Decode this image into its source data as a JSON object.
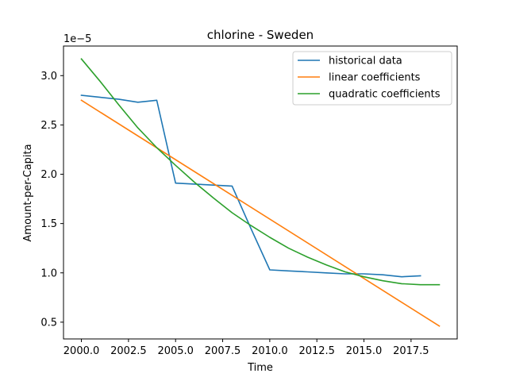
{
  "chart_data": {
    "type": "line",
    "title": "chlorine - Sweden",
    "xlabel": "Time",
    "ylabel": "Amount-per-Capita",
    "y_offset_label": "1e−5",
    "xlim": [
      1999.05,
      2019.95
    ],
    "ylim": [
      0.33,
      3.3
    ],
    "x_ticks": [
      2000.0,
      2002.5,
      2005.0,
      2007.5,
      2010.0,
      2012.5,
      2015.0,
      2017.5
    ],
    "x_tick_labels": [
      "2000.0",
      "2002.5",
      "2005.0",
      "2007.5",
      "2010.0",
      "2012.5",
      "2015.0",
      "2017.5"
    ],
    "y_ticks": [
      0.5,
      1.0,
      1.5,
      2.0,
      2.5,
      3.0
    ],
    "y_tick_labels": [
      "0.5",
      "1.0",
      "1.5",
      "2.0",
      "2.5",
      "3.0"
    ],
    "grid": false,
    "legend_position": "top-right",
    "series": [
      {
        "name": "historical data",
        "color": "#1f77b4",
        "x": [
          2000,
          2001,
          2002,
          2003,
          2004,
          2005,
          2006,
          2007,
          2008,
          2009,
          2010,
          2011,
          2012,
          2013,
          2014,
          2015,
          2016,
          2017,
          2018
        ],
        "y": [
          2.8,
          2.78,
          2.76,
          2.73,
          2.75,
          1.91,
          1.9,
          1.89,
          1.88,
          1.45,
          1.03,
          1.02,
          1.01,
          1.0,
          0.99,
          0.99,
          0.98,
          0.96,
          0.97
        ]
      },
      {
        "name": "linear coefficients",
        "color": "#ff7f0e",
        "x": [
          2000,
          2019
        ],
        "y": [
          2.75,
          0.46
        ]
      },
      {
        "name": "quadratic coefficients",
        "color": "#2ca02c",
        "x": [
          2000,
          2001,
          2002,
          2003,
          2004,
          2005,
          2006,
          2007,
          2008,
          2009,
          2010,
          2011,
          2012,
          2013,
          2014,
          2015,
          2016,
          2017,
          2018,
          2019
        ],
        "y": [
          3.17,
          2.94,
          2.7,
          2.47,
          2.27,
          2.09,
          1.92,
          1.76,
          1.61,
          1.48,
          1.36,
          1.25,
          1.16,
          1.08,
          1.01,
          0.96,
          0.92,
          0.89,
          0.88,
          0.88
        ]
      }
    ]
  }
}
